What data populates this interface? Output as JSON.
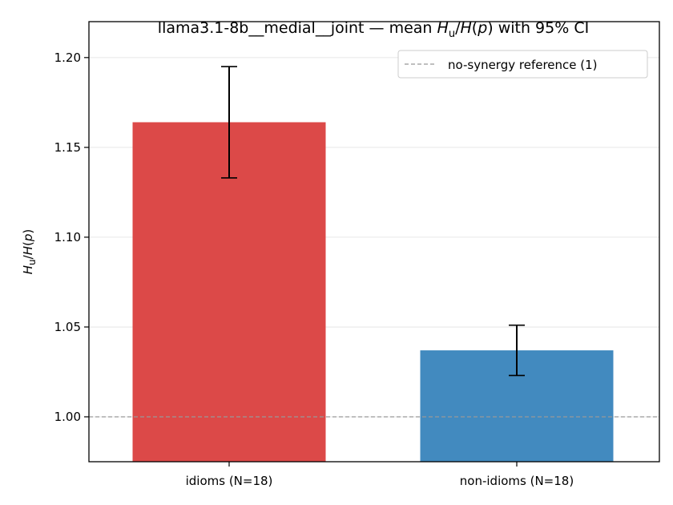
{
  "chart_data": {
    "type": "bar",
    "title_prefix": "llama3.1-8b__medial__joint — mean ",
    "title_suffix": " with 95% CI",
    "ylabel": "Hu/H(p)",
    "xlabel": "",
    "categories": [
      "idioms (N=18)",
      "non-idioms (N=18)"
    ],
    "values": [
      1.164,
      1.037
    ],
    "ci_low": [
      1.133,
      1.023
    ],
    "ci_high": [
      1.195,
      1.051
    ],
    "colors": [
      "#dc4948",
      "#428abf"
    ],
    "ylim": [
      0.975,
      1.22
    ],
    "yticks": [
      1.0,
      1.05,
      1.1,
      1.15,
      1.2
    ],
    "ytick_labels": [
      "1.00",
      "1.05",
      "1.10",
      "1.15",
      "1.20"
    ],
    "reference_line": {
      "value": 1.0,
      "label": "no-synergy reference (1)",
      "color": "#999999"
    },
    "grid": "horizontal",
    "legend_position": "top-right"
  }
}
